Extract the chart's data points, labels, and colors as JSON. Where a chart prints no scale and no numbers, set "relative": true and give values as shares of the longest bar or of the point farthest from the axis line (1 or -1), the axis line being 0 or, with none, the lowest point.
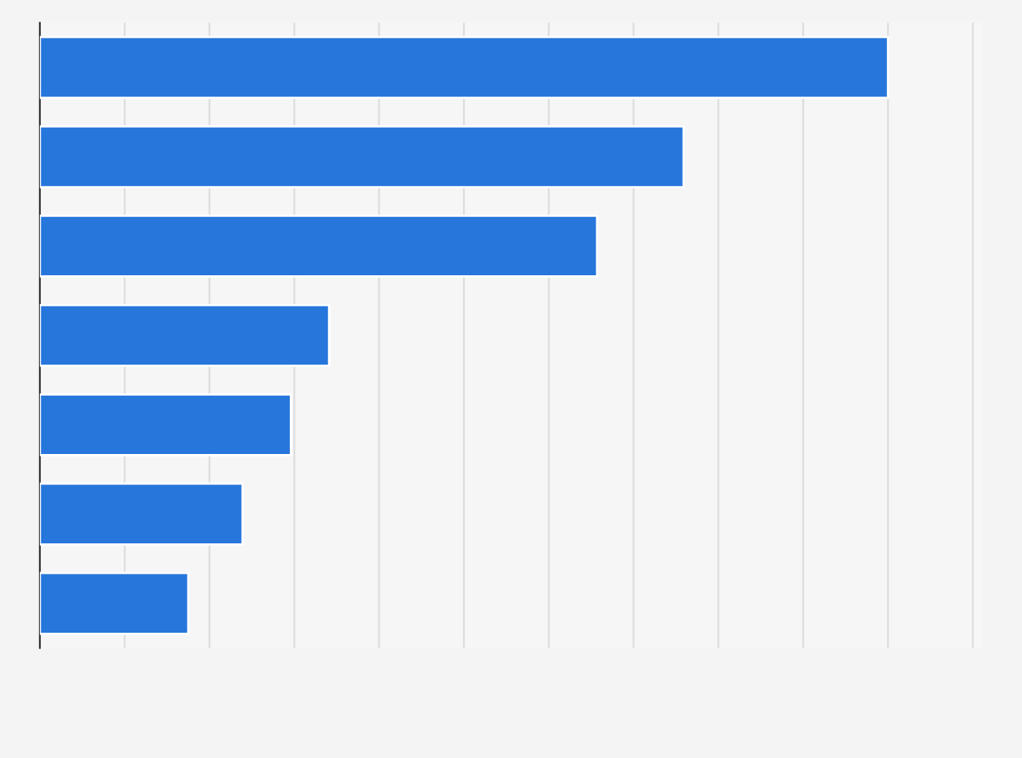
{
  "chart_data": {
    "type": "bar",
    "orientation": "horizontal",
    "relative": true,
    "categories": [
      null,
      null,
      null,
      null,
      null,
      null,
      null
    ],
    "values": [
      1,
      0.759,
      0.657,
      0.341,
      0.296,
      0.239,
      0.175
    ],
    "color": "#2776db",
    "grid": "x"
  }
}
